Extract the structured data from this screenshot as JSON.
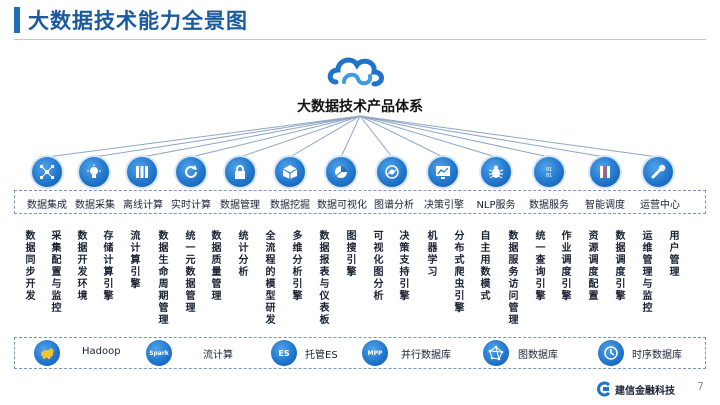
{
  "title": "大数据技术能力全景图",
  "system_title": "大数据技术产品体系",
  "products": [
    {
      "label": "数据集成",
      "icon": "network-icon"
    },
    {
      "label": "数据采集",
      "icon": "lightbulb-icon"
    },
    {
      "label": "离线计算",
      "icon": "server-icon"
    },
    {
      "label": "实时计算",
      "icon": "refresh-icon"
    },
    {
      "label": "数据管理",
      "icon": "lock-icon"
    },
    {
      "label": "数据挖掘",
      "icon": "cube-icon"
    },
    {
      "label": "数据可视化",
      "icon": "pie-icon"
    },
    {
      "label": "图谱分析",
      "icon": "graph-icon"
    },
    {
      "label": "决策引擎",
      "icon": "monitor-chart-icon"
    },
    {
      "label": "NLP服务",
      "icon": "bug-icon"
    },
    {
      "label": "数据服务",
      "icon": "binary-icon"
    },
    {
      "label": "智能调度",
      "icon": "stripes-icon"
    },
    {
      "label": "运营中心",
      "icon": "wrench-icon"
    }
  ],
  "columns": [
    "数据同步开发",
    "采集配置与监控",
    "数据开发环境",
    "存储计算引擎",
    "流计算引擎",
    "数据生命周期管理",
    "统一元数据管理",
    "数据质量管理",
    "统计分析",
    "全流程的模型研发",
    "多维分析引擎",
    "数据报表与仪表板",
    "图搜引擎",
    "可视化图分析",
    "决策支持引擎",
    "机器学习",
    "分布式爬虫引擎",
    "自主用数模式",
    "数据服务访问管理",
    "统一查询引擎",
    "作业调度引擎",
    "资源调度配置",
    "数据调度引擎",
    "运维管理与监控",
    "用户管理"
  ],
  "infrastructure": [
    {
      "label": "Hadoop",
      "icon": "hadoop-elephant-icon",
      "badge": ""
    },
    {
      "label": "流计算",
      "icon": "stream-icon",
      "badge": "Spark"
    },
    {
      "label": "托管ES",
      "icon": "es-icon",
      "badge": "ES"
    },
    {
      "label": "并行数据库",
      "icon": "mpp-icon",
      "badge": "MPP"
    },
    {
      "label": "图数据库",
      "icon": "graph-db-icon",
      "badge": ""
    },
    {
      "label": "时序数据库",
      "icon": "clock-icon",
      "badge": ""
    }
  ],
  "footer": {
    "brand": "建信金融科技",
    "page": "7"
  },
  "colors": {
    "primary": "#1f73c9",
    "title": "#1a5aa0"
  }
}
